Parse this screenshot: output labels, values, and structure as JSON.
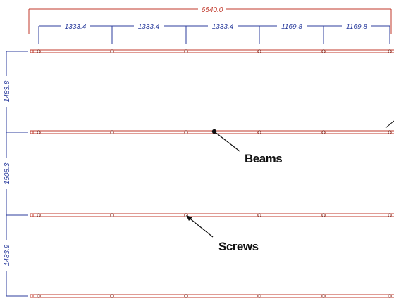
{
  "drawing": {
    "overall_dimension": "6540.0",
    "top_dimensions": [
      "1333.4",
      "1333.4",
      "1333.4",
      "1169.8",
      "1169.8"
    ],
    "side_dimensions": [
      "1483.8",
      "1508.3",
      "1483.9"
    ],
    "beam_count": 4,
    "screws_per_beam": 6,
    "callouts": {
      "beams_label": "Beams",
      "screws_label": "Screws"
    },
    "colors": {
      "overall_dimension": "#c0392b",
      "segment_dimension": "#2c3e9e",
      "side_dimension": "#2c3e9e",
      "beam_line": "#c0392b",
      "screw_marker": "#8b2a1f",
      "callout_text": "#111111"
    }
  }
}
